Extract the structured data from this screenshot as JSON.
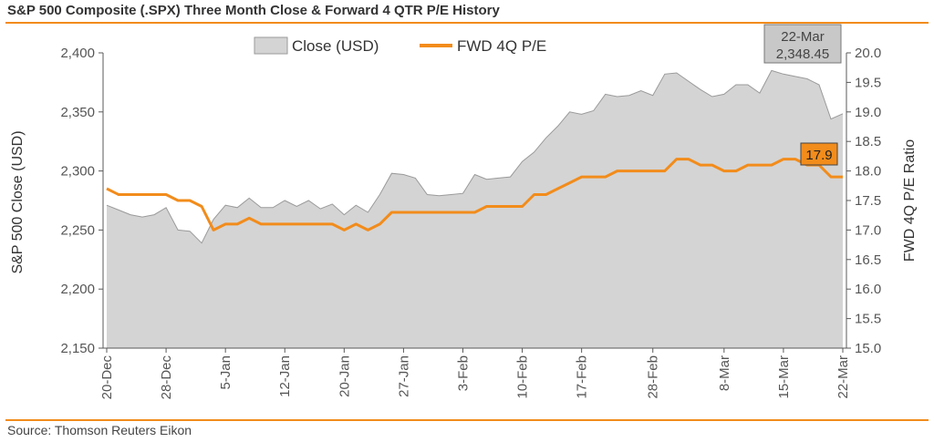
{
  "title": "S&P 500 Composite (.SPX) Three Month Close & Forward 4 QTR P/E History",
  "source": "Source: Thomson Reuters Eikon",
  "chart_data": {
    "type": "area",
    "title": "S&P 500 Composite (.SPX) Three Month Close & Forward 4 QTR P/E History",
    "ylabel": "S&P 500 Close (USD)",
    "y2label": "FWD 4Q P/E Ratio",
    "ylim": [
      2150,
      2400
    ],
    "y2lim": [
      15.0,
      20.0
    ],
    "y_ticks": [
      "2,150",
      "2,200",
      "2,250",
      "2,300",
      "2,350",
      "2,400"
    ],
    "y2_ticks": [
      "15.0",
      "15.5",
      "16.0",
      "16.5",
      "17.0",
      "17.5",
      "18.0",
      "18.5",
      "19.0",
      "19.5",
      "20.0"
    ],
    "x_tick_labels": [
      "20-Dec",
      "28-Dec",
      "5-Jan",
      "12-Jan",
      "20-Jan",
      "27-Jan",
      "3-Feb",
      "10-Feb",
      "17-Feb",
      "28-Feb",
      "8-Mar",
      "15-Mar",
      "22-Mar"
    ],
    "x_tick_index": [
      0,
      5,
      10,
      15,
      20,
      25,
      30,
      35,
      40,
      46,
      52,
      57,
      62
    ],
    "legend": [
      "Close (USD)",
      "FWD 4Q P/E"
    ],
    "legend_position": "top-center",
    "grid": false,
    "colors": {
      "close_fill": "#d4d4d4",
      "close_stroke": "#9a9a9a",
      "pe_line": "#f28c1b",
      "axis": "#595959"
    },
    "series": [
      {
        "name": "Close (USD)",
        "values": [
          2271,
          2267,
          2263,
          2261,
          2263,
          2269,
          2250,
          2249,
          2239,
          2259,
          2271,
          2269,
          2277,
          2269,
          2269,
          2275,
          2270,
          2275,
          2268,
          2272,
          2263,
          2271,
          2265,
          2280,
          2298,
          2297,
          2294,
          2280,
          2279,
          2280,
          2281,
          2297,
          2293,
          2294,
          2295,
          2308,
          2316,
          2328,
          2338,
          2350,
          2348,
          2351,
          2365,
          2363,
          2364,
          2368,
          2364,
          2382,
          2383,
          2376,
          2369,
          2363,
          2365,
          2373,
          2373,
          2366,
          2385,
          2382,
          2380,
          2378,
          2373,
          2344,
          2348.45
        ]
      },
      {
        "name": "FWD 4Q P/E",
        "values": [
          17.7,
          17.6,
          17.6,
          17.6,
          17.6,
          17.6,
          17.5,
          17.5,
          17.4,
          17.0,
          17.1,
          17.1,
          17.2,
          17.1,
          17.1,
          17.1,
          17.1,
          17.1,
          17.1,
          17.1,
          17.0,
          17.1,
          17.0,
          17.1,
          17.3,
          17.3,
          17.3,
          17.3,
          17.3,
          17.3,
          17.3,
          17.3,
          17.4,
          17.4,
          17.4,
          17.4,
          17.6,
          17.6,
          17.7,
          17.8,
          17.9,
          17.9,
          17.9,
          18.0,
          18.0,
          18.0,
          18.0,
          18.0,
          18.2,
          18.2,
          18.1,
          18.1,
          18.0,
          18.0,
          18.1,
          18.1,
          18.1,
          18.2,
          18.2,
          18.1,
          18.1,
          17.9,
          17.9
        ]
      }
    ],
    "annotations": [
      {
        "series": "Close (USD)",
        "date_label": "22-Mar",
        "value_label": "2,348.45"
      },
      {
        "series": "FWD 4Q P/E",
        "value_label": "17.9"
      }
    ]
  }
}
